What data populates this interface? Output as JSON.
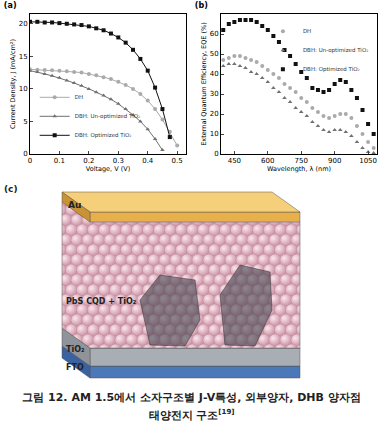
{
  "chart_data": [
    {
      "type": "line",
      "title": "(a)",
      "x_label": "Voltage, V (V)",
      "y_label": "Current Density, J (mA/cm²)",
      "x": [
        0,
        0.025,
        0.05,
        0.075,
        0.1,
        0.125,
        0.15,
        0.175,
        0.2,
        0.225,
        0.25,
        0.275,
        0.3,
        0.325,
        0.35,
        0.375,
        0.4,
        0.425,
        0.45,
        0.475,
        0.5
      ],
      "series": [
        {
          "name": "DH",
          "color": "#aaaaaa",
          "marker": "circle",
          "values": [
            13.0,
            12.95,
            12.9,
            12.85,
            12.8,
            12.7,
            12.6,
            12.5,
            12.3,
            12.1,
            11.8,
            11.5,
            11.1,
            10.6,
            10.0,
            9.2,
            8.2,
            6.9,
            5.3,
            3.4,
            1.3
          ]
        },
        {
          "name": "DBH: Un-optimized TiO₂",
          "color": "#707070",
          "marker": "triangle-up",
          "values": [
            12.8,
            12.6,
            12.3,
            12.0,
            11.7,
            11.3,
            10.9,
            10.5,
            10.0,
            9.5,
            9.0,
            8.4,
            7.7,
            6.9,
            6.0,
            5.0,
            3.8,
            2.3,
            0.6,
            null,
            null
          ]
        },
        {
          "name": "DBH: Optimized TiO₂",
          "color": "#111111",
          "marker": "square",
          "values": [
            20.3,
            20.3,
            20.2,
            20.2,
            20.1,
            20.0,
            19.9,
            19.8,
            19.6,
            19.3,
            19.0,
            18.5,
            17.9,
            17.1,
            16.0,
            14.6,
            12.8,
            10.2,
            6.9,
            2.6,
            null
          ]
        }
      ],
      "xlim": [
        0,
        0.53
      ],
      "xticks": [
        0,
        0.1,
        0.2,
        0.3,
        0.4,
        0.5
      ],
      "ylim": [
        0,
        21.5
      ],
      "yticks": [
        0,
        5,
        10,
        15,
        20
      ],
      "legend": "bottom left",
      "grid": false
    },
    {
      "type": "scatter",
      "title": "(b)",
      "x_label": "Wavelength, λ (nm)",
      "y_label": "External Quantum Efficiency, EQE (%)",
      "x": [
        400,
        425,
        450,
        475,
        500,
        525,
        550,
        575,
        600,
        625,
        650,
        675,
        700,
        725,
        750,
        775,
        800,
        825,
        850,
        875,
        900,
        925,
        950,
        975,
        1000,
        1025,
        1050,
        1075
      ],
      "series": [
        {
          "name": "DH",
          "color": "#aaaaaa",
          "marker": "circle",
          "values": [
            47,
            48,
            49,
            49,
            48,
            47,
            46,
            44,
            42,
            40,
            38,
            35,
            33,
            31,
            28,
            26,
            23,
            21,
            19,
            18,
            19,
            20,
            20,
            18,
            14,
            10,
            6,
            3
          ]
        },
        {
          "name": "DBH: Un-optimized TiO₂",
          "color": "#707070",
          "marker": "triangle-up",
          "values": [
            44,
            45,
            45,
            44,
            43,
            41,
            40,
            38,
            36,
            33,
            31,
            28,
            26,
            23,
            21,
            19,
            16,
            14,
            12,
            11,
            12,
            12,
            11,
            9,
            6,
            3,
            1,
            0.5
          ]
        },
        {
          "name": "DBH: Optimized TiO₂",
          "color": "#111111",
          "marker": "square",
          "values": [
            62,
            65,
            66,
            67,
            67,
            67,
            66,
            64,
            62,
            59,
            56,
            52,
            49,
            45,
            41,
            38,
            33,
            32,
            31,
            32,
            35,
            37,
            36,
            32,
            28,
            22,
            15,
            10
          ]
        }
      ],
      "xlim": [
        390,
        1090
      ],
      "xticks": [
        450,
        600,
        750,
        900,
        1050
      ],
      "ylim": [
        0,
        70
      ],
      "yticks": [
        0,
        10,
        20,
        30,
        40,
        50,
        60
      ],
      "legend": "top right",
      "grid": false
    }
  ],
  "diagram": {
    "title": "(c)",
    "layers": [
      "FTO",
      "TiO₂",
      "PbS CQD + TiO₂",
      "Au"
    ]
  },
  "caption": {
    "lines": [
      "그림 12. AM 1.5에서 소자구조별 J-V특성, 외부양자, DHB 양자점",
      "태양전지 구조"
    ],
    "reference": "[19]"
  }
}
